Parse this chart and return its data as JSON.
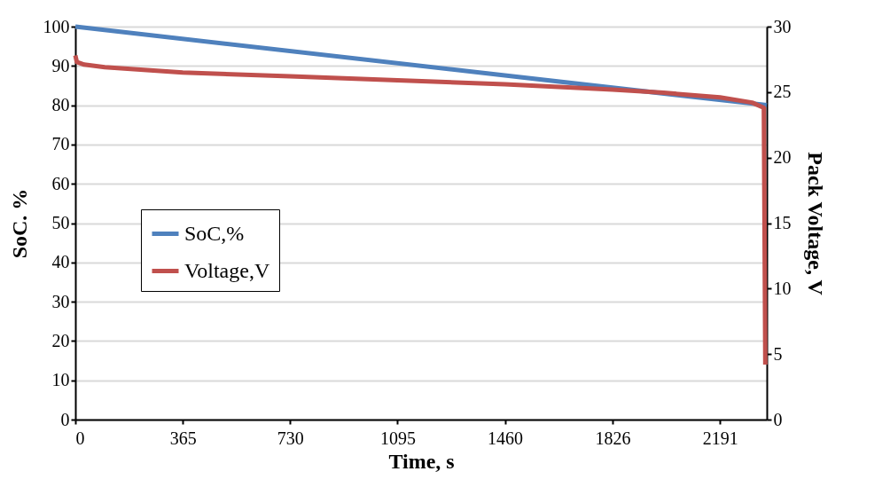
{
  "chart_data": {
    "type": "line",
    "xlabel": "Time, s",
    "ylabel": "SoC. %",
    "y2label": "Pack Voltage, V",
    "xlim": [
      0,
      2350
    ],
    "xticks": [
      0,
      365,
      730,
      1095,
      1460,
      1826,
      2191
    ],
    "ylim": [
      0,
      100
    ],
    "yticks": [
      0,
      10,
      20,
      30,
      40,
      50,
      60,
      70,
      80,
      90,
      100
    ],
    "y2lim": [
      0,
      30
    ],
    "y2ticks": [
      0,
      5,
      10,
      15,
      20,
      25,
      30
    ],
    "grid": "y",
    "legend": "left",
    "marker": "none",
    "line_style": "solid",
    "series": [
      {
        "name": "SoC,%",
        "color": "#4f81bd",
        "x": [
          0,
          2350
        ],
        "values": [
          100,
          80
        ]
      },
      {
        "name": "Voltage,V",
        "color": "#c0504d",
        "axis": "y2",
        "x": [
          0,
          5,
          30,
          100,
          365,
          730,
          1095,
          1460,
          1826,
          2000,
          2191,
          2300,
          2340,
          2345
        ],
        "values": [
          27.8,
          27.3,
          27.1,
          26.9,
          26.5,
          26.2,
          25.9,
          25.6,
          25.2,
          24.95,
          24.6,
          24.2,
          23.8,
          4.2
        ]
      }
    ]
  }
}
